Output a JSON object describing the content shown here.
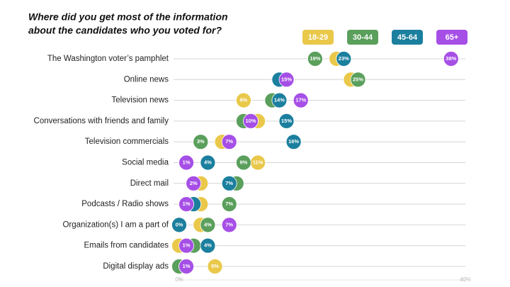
{
  "chart_data": {
    "type": "dot",
    "title": [
      "Where did you get most of the information",
      "about the candidates who you voted for?"
    ],
    "categories": [
      "The Washington voter’s pamphlet",
      "Online news",
      "Television news",
      "Conversations with friends and family",
      "Television commercials",
      "Social media",
      "Direct mail",
      "Podcasts / Radio shows",
      "Organization(s) I am a part of",
      "Emails from candidates",
      "Digital display ads"
    ],
    "xlim": [
      0,
      40
    ],
    "xticks": [
      {
        "value": 0,
        "label": "0%"
      },
      {
        "value": 40,
        "label": "40%"
      }
    ],
    "grid": true,
    "legend": "top-right",
    "series": [
      {
        "name": "18-29",
        "color": "#e9c84a",
        "values": [
          22,
          24,
          9,
          11,
          6,
          11,
          3,
          3,
          3,
          0,
          5
        ],
        "value_labels": [
          null,
          null,
          "9%",
          null,
          null,
          "11%",
          null,
          null,
          null,
          null,
          "5%"
        ]
      },
      {
        "name": "30-44",
        "color": "#5a9f5c",
        "values": [
          19,
          25,
          13,
          9,
          3,
          9,
          8,
          7,
          4,
          2,
          0
        ],
        "value_labels": [
          "19%",
          "25%",
          null,
          null,
          "3%",
          "9%",
          null,
          "7%",
          "4%",
          null,
          null
        ]
      },
      {
        "name": "45-64",
        "color": "#1b7f9e",
        "values": [
          23,
          14,
          14,
          15,
          16,
          4,
          7,
          2,
          0,
          4,
          1
        ],
        "value_labels": [
          "23%",
          null,
          "14%",
          "15%",
          "16%",
          "4%",
          "7%",
          null,
          "0%",
          "4%",
          null
        ]
      },
      {
        "name": "65+",
        "color": "#a64fe6",
        "values": [
          38,
          15,
          17,
          10,
          7,
          1,
          2,
          1,
          7,
          1,
          1
        ],
        "value_labels": [
          "38%",
          "15%",
          "17%",
          "10%",
          "7%",
          "1%",
          "2%",
          "1%",
          "7%",
          "1%",
          "1%"
        ]
      }
    ]
  }
}
